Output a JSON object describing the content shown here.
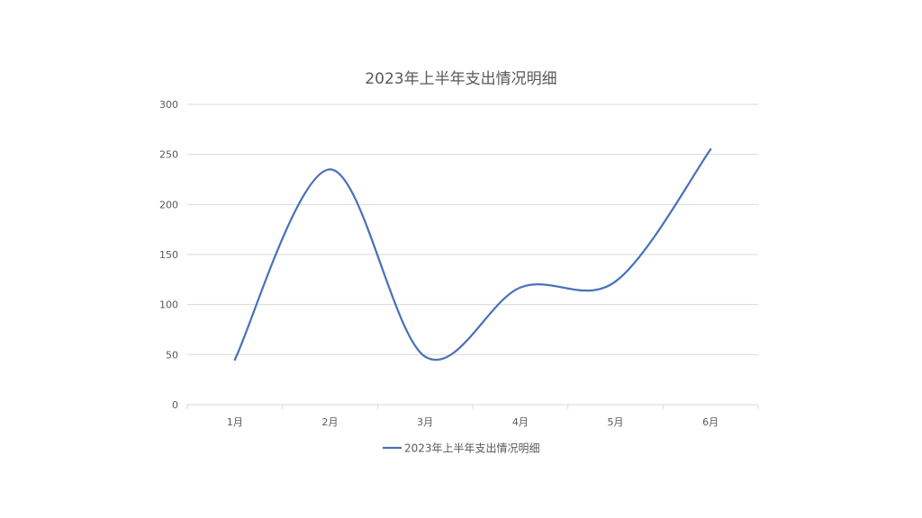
{
  "chart_data": {
    "type": "line",
    "smooth": true,
    "title": "2023年上半年支出情况明细",
    "xlabel": "",
    "ylabel": "",
    "categories": [
      "1月",
      "2月",
      "3月",
      "4月",
      "5月",
      "6月"
    ],
    "series": [
      {
        "name": "2023年上半年支出情况明细",
        "color": "#4a72b8",
        "values": [
          45,
          235,
          48,
          117,
          123,
          255
        ]
      }
    ],
    "ylim": [
      0,
      300
    ],
    "yticks": [
      0,
      50,
      100,
      150,
      200,
      250,
      300
    ],
    "grid": true,
    "legend_position": "bottom"
  }
}
